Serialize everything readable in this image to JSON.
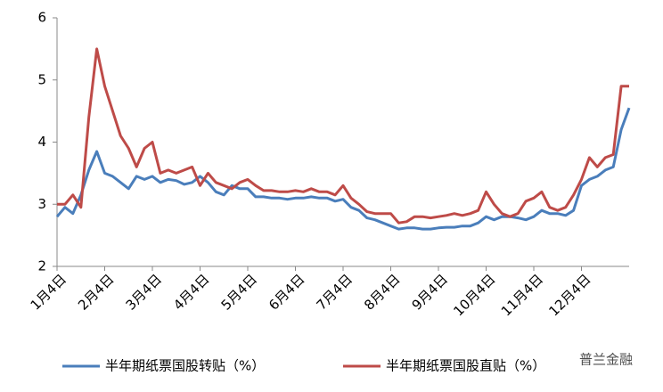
{
  "chart_data": {
    "type": "line",
    "categories": [
      "1月4日",
      null,
      null,
      null,
      null,
      null,
      "2月4日",
      null,
      null,
      null,
      null,
      null,
      "3月4日",
      null,
      null,
      null,
      null,
      null,
      "4月4日",
      null,
      null,
      null,
      null,
      null,
      "5月4日",
      null,
      null,
      null,
      null,
      null,
      "6月4日",
      null,
      null,
      null,
      null,
      null,
      "7月4日",
      null,
      null,
      null,
      null,
      null,
      "8月4日",
      null,
      null,
      null,
      null,
      null,
      "9月4日",
      null,
      null,
      null,
      null,
      null,
      "10月4日",
      null,
      null,
      null,
      null,
      null,
      "11月4日",
      null,
      null,
      null,
      null,
      null,
      "12月4日",
      null,
      null,
      null,
      null,
      null,
      null
    ],
    "series": [
      {
        "name": "半年期纸票国股转贴（%）",
        "color": "#4a7ebb",
        "values": [
          2.8,
          2.95,
          2.85,
          3.15,
          3.55,
          3.85,
          3.5,
          3.45,
          3.35,
          3.25,
          3.45,
          3.4,
          3.45,
          3.35,
          3.4,
          3.38,
          3.32,
          3.35,
          3.45,
          3.35,
          3.2,
          3.15,
          3.3,
          3.25,
          3.25,
          3.12,
          3.12,
          3.1,
          3.1,
          3.08,
          3.1,
          3.1,
          3.12,
          3.1,
          3.1,
          3.05,
          3.08,
          2.95,
          2.9,
          2.78,
          2.75,
          2.7,
          2.65,
          2.6,
          2.62,
          2.62,
          2.6,
          2.6,
          2.62,
          2.63,
          2.63,
          2.65,
          2.65,
          2.7,
          2.8,
          2.75,
          2.8,
          2.8,
          2.78,
          2.75,
          2.8,
          2.9,
          2.85,
          2.85,
          2.82,
          2.9,
          3.3,
          3.4,
          3.45,
          3.55,
          3.6,
          4.2,
          4.55
        ]
      },
      {
        "name": "半年期纸票国股直贴（%）",
        "color": "#be4b48",
        "values": [
          3.0,
          3.0,
          3.15,
          2.95,
          4.4,
          5.5,
          4.9,
          4.5,
          4.1,
          3.9,
          3.6,
          3.9,
          4.0,
          3.5,
          3.55,
          3.5,
          3.55,
          3.6,
          3.3,
          3.5,
          3.35,
          3.3,
          3.25,
          3.35,
          3.4,
          3.3,
          3.22,
          3.22,
          3.2,
          3.2,
          3.22,
          3.2,
          3.25,
          3.2,
          3.2,
          3.15,
          3.3,
          3.1,
          3.0,
          2.88,
          2.85,
          2.85,
          2.85,
          2.7,
          2.72,
          2.8,
          2.8,
          2.78,
          2.8,
          2.82,
          2.85,
          2.82,
          2.85,
          2.9,
          3.2,
          3.0,
          2.85,
          2.8,
          2.85,
          3.05,
          3.1,
          3.2,
          2.95,
          2.9,
          2.95,
          3.15,
          3.4,
          3.75,
          3.6,
          3.75,
          3.8,
          4.9,
          4.9
        ]
      }
    ],
    "ylim": [
      2,
      6
    ],
    "yticks": [
      2,
      3,
      4,
      5,
      6
    ],
    "grid": false,
    "legend": "bottom",
    "watermark": "普兰金融"
  }
}
